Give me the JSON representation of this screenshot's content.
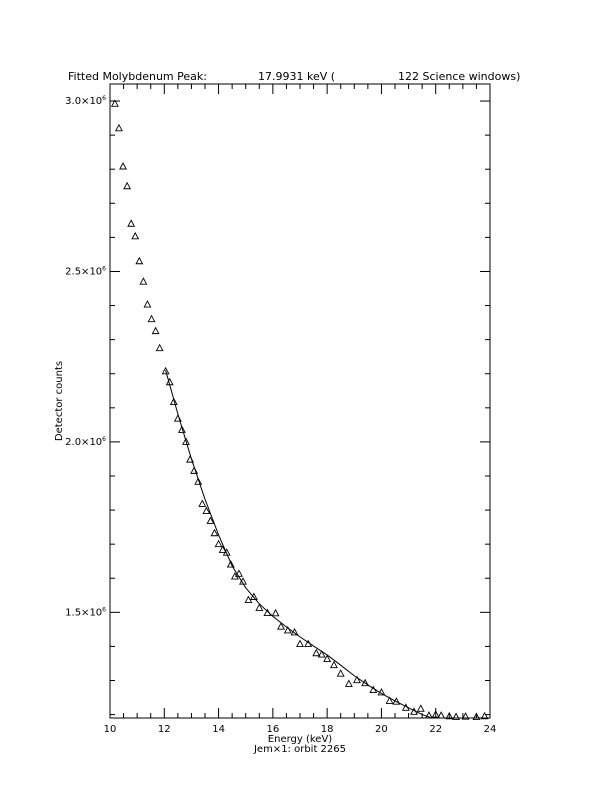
{
  "chart_data": {
    "type": "scatter",
    "title": {
      "left": "Fitted Molybdenum Peak:",
      "energy": "17.9931 keV (",
      "right": "122 Science windows)"
    },
    "xlabel": "Energy (keV)",
    "ylabel": "Detector counts",
    "footer": "Jem×1: orbit 2265",
    "xlim": [
      10,
      24
    ],
    "ylim": [
      1190000,
      3050000
    ],
    "xticks": [
      10,
      12,
      14,
      16,
      18,
      20,
      22,
      24
    ],
    "xtick_labels": [
      "10",
      "12",
      "14",
      "16",
      "18",
      "20",
      "22",
      "24"
    ],
    "yticks": [
      1500000,
      2000000,
      2500000,
      3000000
    ],
    "ytick_labels": [
      {
        "mant": "1.5×10",
        "exp": "6"
      },
      {
        "mant": "2.0×10",
        "exp": "6"
      },
      {
        "mant": "2.5×10",
        "exp": "6"
      },
      {
        "mant": "3.0×10",
        "exp": "6"
      }
    ],
    "grid": false,
    "series": [
      {
        "marker": "triangle",
        "points": [
          [
            10.18,
            2992000
          ],
          [
            10.33,
            2920000
          ],
          [
            10.48,
            2808000
          ],
          [
            10.63,
            2750000
          ],
          [
            10.78,
            2640000
          ],
          [
            10.93,
            2603000
          ],
          [
            11.08,
            2530000
          ],
          [
            11.23,
            2470000
          ],
          [
            11.38,
            2403000
          ],
          [
            11.53,
            2360000
          ],
          [
            11.68,
            2325000
          ],
          [
            11.83,
            2275000
          ],
          [
            12.05,
            2207000
          ],
          [
            12.2,
            2175000
          ],
          [
            12.35,
            2117000
          ],
          [
            12.5,
            2068000
          ],
          [
            12.65,
            2035000
          ],
          [
            12.8,
            2000000
          ],
          [
            12.95,
            1948000
          ],
          [
            13.1,
            1915000
          ],
          [
            13.25,
            1883000
          ],
          [
            13.4,
            1818000
          ],
          [
            13.55,
            1797000
          ],
          [
            13.7,
            1768000
          ],
          [
            13.85,
            1732000
          ],
          [
            14.0,
            1700000
          ],
          [
            14.15,
            1683000
          ],
          [
            14.3,
            1675000
          ],
          [
            14.45,
            1640000
          ],
          [
            14.6,
            1605000
          ],
          [
            14.75,
            1613000
          ],
          [
            14.9,
            1590000
          ],
          [
            15.1,
            1536000
          ],
          [
            15.3,
            1545000
          ],
          [
            15.5,
            1513000
          ],
          [
            15.8,
            1498000
          ],
          [
            16.1,
            1497000
          ],
          [
            16.3,
            1458000
          ],
          [
            16.55,
            1447000
          ],
          [
            16.8,
            1441000
          ],
          [
            17.0,
            1407000
          ],
          [
            17.3,
            1407000
          ],
          [
            17.6,
            1380000
          ],
          [
            17.8,
            1376000
          ],
          [
            18.0,
            1363000
          ],
          [
            18.25,
            1345000
          ],
          [
            18.5,
            1320000
          ],
          [
            18.8,
            1290000
          ],
          [
            19.1,
            1301000
          ],
          [
            19.4,
            1292000
          ],
          [
            19.7,
            1272000
          ],
          [
            20.0,
            1265000
          ],
          [
            20.3,
            1240000
          ],
          [
            20.55,
            1238000
          ],
          [
            20.9,
            1220000
          ],
          [
            21.2,
            1208000
          ],
          [
            21.45,
            1217000
          ],
          [
            21.75,
            1197000
          ],
          [
            22.0,
            1200000
          ],
          [
            22.2,
            1197000
          ],
          [
            22.5,
            1195000
          ],
          [
            22.75,
            1193000
          ],
          [
            23.1,
            1194000
          ],
          [
            23.5,
            1193000
          ],
          [
            23.8,
            1195000
          ]
        ]
      },
      {
        "marker": "line",
        "points": [
          [
            12.05,
            2210000
          ],
          [
            12.5,
            2082000
          ],
          [
            13.0,
            1950000
          ],
          [
            13.5,
            1832000
          ],
          [
            14.0,
            1727000
          ],
          [
            14.5,
            1636000
          ],
          [
            15.0,
            1572000
          ],
          [
            15.5,
            1525000
          ],
          [
            16.0,
            1488000
          ],
          [
            16.5,
            1457000
          ],
          [
            17.0,
            1428000
          ],
          [
            17.5,
            1401000
          ],
          [
            18.0,
            1375000
          ],
          [
            18.5,
            1345000
          ],
          [
            19.0,
            1314000
          ],
          [
            19.5,
            1287000
          ],
          [
            20.0,
            1262000
          ],
          [
            20.5,
            1240000
          ],
          [
            21.0,
            1220000
          ],
          [
            21.5,
            1200000
          ],
          [
            22.0,
            1186000
          ]
        ]
      }
    ]
  }
}
